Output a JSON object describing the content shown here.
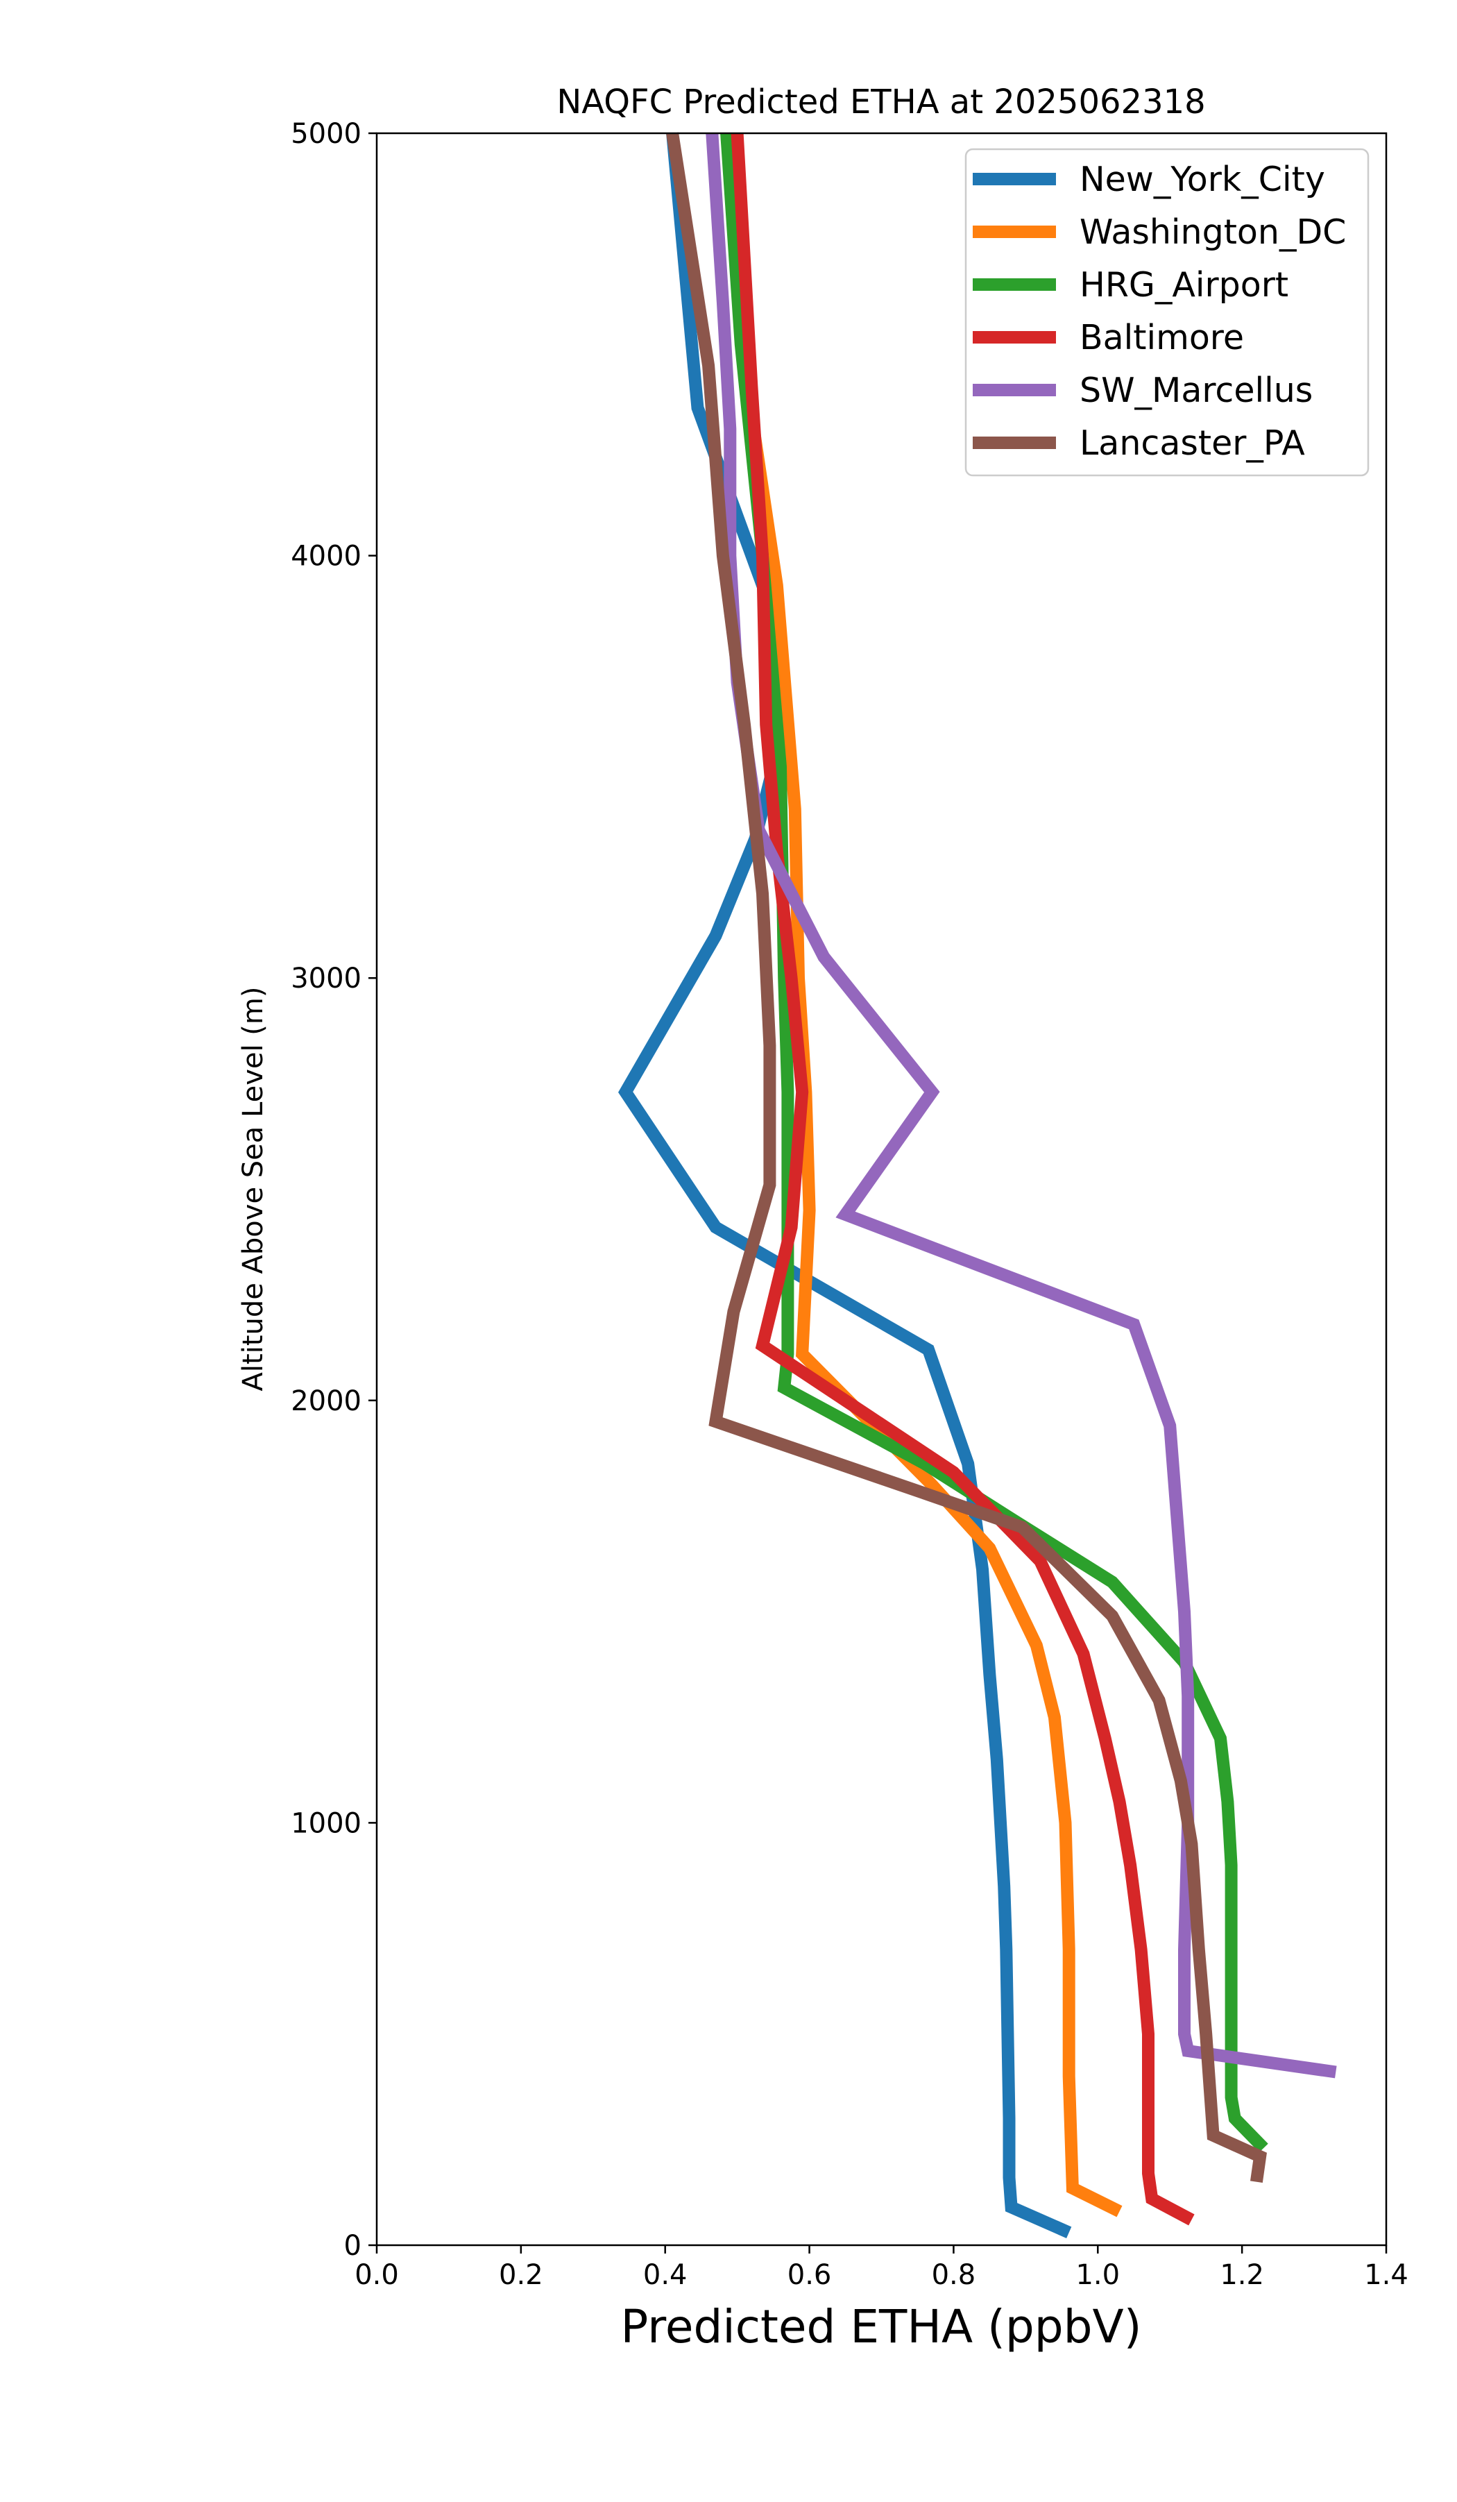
{
  "chart_data": {
    "type": "line",
    "title": "NAQFC Predicted ETHA at 2025062318",
    "xlabel": "Predicted ETHA (ppbV)",
    "ylabel": "Altitude Above Sea Level (m)",
    "xlim": [
      0.0,
      1.4
    ],
    "ylim": [
      0,
      5000
    ],
    "xticks": [
      "0.0",
      "0.2",
      "0.4",
      "0.6",
      "0.8",
      "1.0",
      "1.2",
      "1.4"
    ],
    "yticks": [
      "0",
      "1000",
      "2000",
      "3000",
      "4000",
      "5000"
    ],
    "grid": false,
    "legend_position": "top-right",
    "series": [
      {
        "name": "New_York_City",
        "color": "#1f77b4",
        "points": [
          [
            0.96,
            30
          ],
          [
            0.88,
            90
          ],
          [
            0.877,
            160
          ],
          [
            0.877,
            300
          ],
          [
            0.873,
            700
          ],
          [
            0.87,
            850
          ],
          [
            0.86,
            1150
          ],
          [
            0.85,
            1350
          ],
          [
            0.84,
            1600
          ],
          [
            0.82,
            1850
          ],
          [
            0.765,
            2120
          ],
          [
            0.47,
            2410
          ],
          [
            0.345,
            2730
          ],
          [
            0.47,
            3100
          ],
          [
            0.525,
            3330
          ],
          [
            0.55,
            3500
          ],
          [
            0.55,
            3860
          ],
          [
            0.445,
            4350
          ],
          [
            0.41,
            5000
          ]
        ]
      },
      {
        "name": "Washington_DC",
        "color": "#ff7f0e",
        "points": [
          [
            1.03,
            80
          ],
          [
            0.965,
            135
          ],
          [
            0.96,
            400
          ],
          [
            0.96,
            700
          ],
          [
            0.955,
            1000
          ],
          [
            0.94,
            1250
          ],
          [
            0.915,
            1420
          ],
          [
            0.85,
            1650
          ],
          [
            0.77,
            1800
          ],
          [
            0.59,
            2110
          ],
          [
            0.6,
            2450
          ],
          [
            0.595,
            2730
          ],
          [
            0.585,
            3000
          ],
          [
            0.58,
            3400
          ],
          [
            0.555,
            3930
          ],
          [
            0.515,
            4390
          ],
          [
            0.495,
            5000
          ]
        ]
      },
      {
        "name": "HRG_Airport",
        "color": "#2ca02c",
        "points": [
          [
            1.23,
            230
          ],
          [
            1.19,
            300
          ],
          [
            1.185,
            350
          ],
          [
            1.185,
            600
          ],
          [
            1.185,
            900
          ],
          [
            1.18,
            1050
          ],
          [
            1.17,
            1200
          ],
          [
            1.12,
            1380
          ],
          [
            1.02,
            1570
          ],
          [
            0.88,
            1720
          ],
          [
            0.76,
            1850
          ],
          [
            0.565,
            2030
          ],
          [
            0.57,
            2110
          ],
          [
            0.57,
            2410
          ],
          [
            0.57,
            2730
          ],
          [
            0.565,
            3000
          ],
          [
            0.56,
            3500
          ],
          [
            0.535,
            4000
          ],
          [
            0.505,
            4500
          ],
          [
            0.485,
            5000
          ]
        ]
      },
      {
        "name": "Baltimore",
        "color": "#d62728",
        "points": [
          [
            1.13,
            60
          ],
          [
            1.075,
            110
          ],
          [
            1.07,
            170
          ],
          [
            1.07,
            500
          ],
          [
            1.06,
            700
          ],
          [
            1.045,
            900
          ],
          [
            1.03,
            1050
          ],
          [
            1.01,
            1200
          ],
          [
            0.98,
            1400
          ],
          [
            0.92,
            1620
          ],
          [
            0.8,
            1830
          ],
          [
            0.535,
            2130
          ],
          [
            0.575,
            2410
          ],
          [
            0.59,
            2730
          ],
          [
            0.575,
            3000
          ],
          [
            0.555,
            3300
          ],
          [
            0.54,
            3600
          ],
          [
            0.535,
            4000
          ],
          [
            0.52,
            4400
          ],
          [
            0.5,
            5000
          ]
        ]
      },
      {
        "name": "SW_Marcellus",
        "color": "#9467bd",
        "points": [
          [
            1.33,
            410
          ],
          [
            1.125,
            460
          ],
          [
            1.12,
            500
          ],
          [
            1.12,
            700
          ],
          [
            1.125,
            1000
          ],
          [
            1.125,
            1300
          ],
          [
            1.12,
            1500
          ],
          [
            1.11,
            1720
          ],
          [
            1.1,
            1940
          ],
          [
            1.05,
            2180
          ],
          [
            0.65,
            2440
          ],
          [
            0.77,
            2730
          ],
          [
            0.62,
            3050
          ],
          [
            0.53,
            3350
          ],
          [
            0.5,
            3700
          ],
          [
            0.49,
            4000
          ],
          [
            0.49,
            4300
          ],
          [
            0.48,
            4600
          ],
          [
            0.465,
            5000
          ]
        ]
      },
      {
        "name": "Lancaster_PA",
        "color": "#8c564b",
        "points": [
          [
            1.22,
            150
          ],
          [
            1.225,
            210
          ],
          [
            1.16,
            260
          ],
          [
            1.15,
            500
          ],
          [
            1.14,
            700
          ],
          [
            1.13,
            950
          ],
          [
            1.115,
            1100
          ],
          [
            1.085,
            1290
          ],
          [
            1.02,
            1490
          ],
          [
            0.895,
            1700
          ],
          [
            0.76,
            1780
          ],
          [
            0.47,
            1950
          ],
          [
            0.495,
            2210
          ],
          [
            0.545,
            2510
          ],
          [
            0.545,
            2840
          ],
          [
            0.535,
            3200
          ],
          [
            0.51,
            3600
          ],
          [
            0.48,
            4000
          ],
          [
            0.46,
            4450
          ],
          [
            0.41,
            5000
          ]
        ]
      }
    ]
  }
}
